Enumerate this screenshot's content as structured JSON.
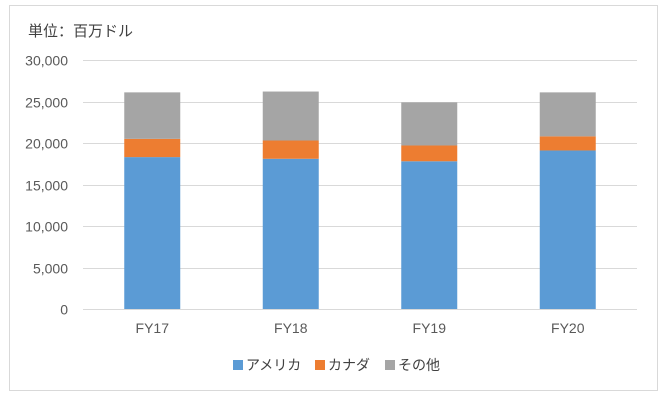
{
  "chart_data": {
    "type": "bar",
    "stacked": true,
    "unit_label": "単位：百万ドル",
    "categories": [
      "FY17",
      "FY18",
      "FY19",
      "FY20"
    ],
    "series": [
      {
        "name": "アメリカ",
        "color": "#5b9bd5",
        "values": [
          18300,
          18100,
          17800,
          19100
        ]
      },
      {
        "name": "カナダ",
        "color": "#ed7d31",
        "values": [
          2200,
          2200,
          1900,
          1700
        ]
      },
      {
        "name": "その他",
        "color": "#a5a5a5",
        "values": [
          5600,
          5900,
          5200,
          5300
        ]
      }
    ],
    "ylim": [
      0,
      30000
    ],
    "yticks": [
      0,
      5000,
      10000,
      15000,
      20000,
      25000,
      30000
    ],
    "ytick_labels": [
      "0",
      "5,000",
      "10,000",
      "15,000",
      "20,000",
      "25,000",
      "30,000"
    ],
    "grid": true,
    "legend_position": "bottom"
  }
}
